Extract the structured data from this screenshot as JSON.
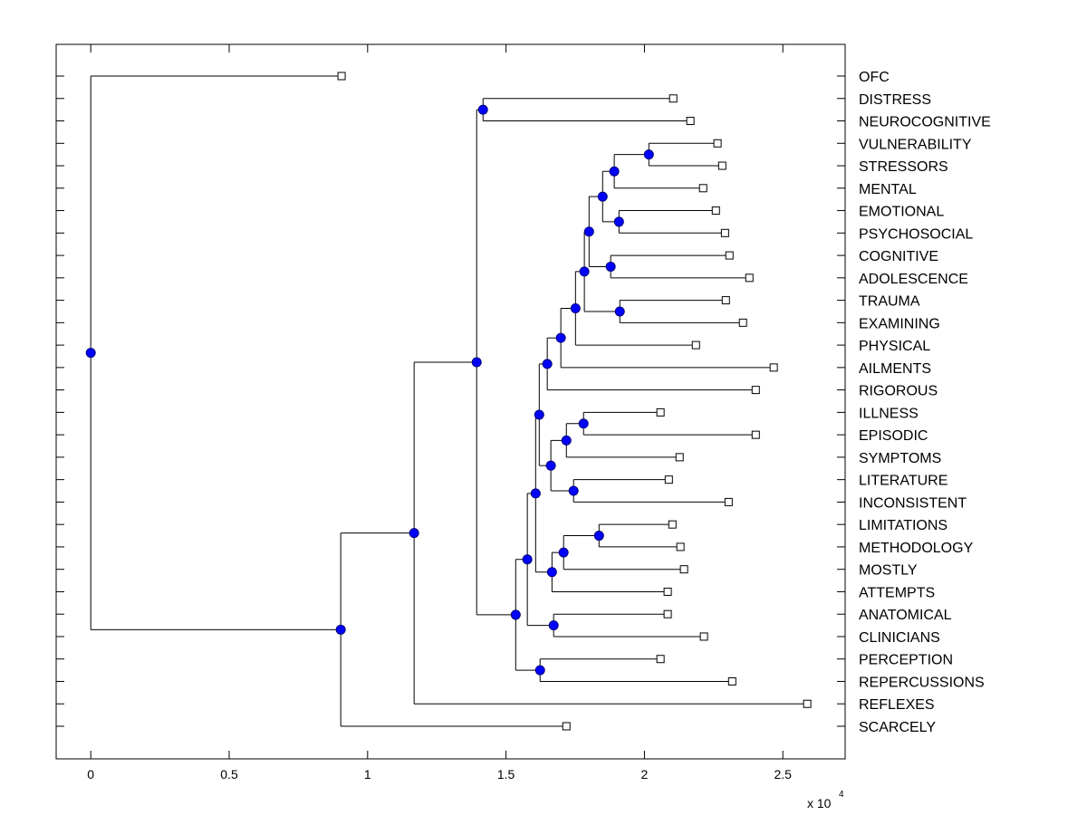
{
  "chart_data": {
    "type": "dendrogram",
    "title": "",
    "xlabel": "",
    "ylabel": "",
    "x_scale_label": "x 10",
    "x_scale_exponent": "4",
    "xlim": [
      -0.125,
      2.725
    ],
    "x_ticks": [
      0,
      0.5,
      1,
      1.5,
      2,
      2.5
    ],
    "x_tick_labels": [
      "0",
      "0.5",
      "1",
      "1.5",
      "2",
      "2.5"
    ],
    "grid": false,
    "node_color": "#0000ff",
    "leaf_marker": "open-square",
    "leaves": [
      {
        "label": "OFC",
        "x": 0.906
      },
      {
        "label": "DISTRESS",
        "x": 2.104
      },
      {
        "label": "NEUROCOGNITIVE",
        "x": 2.166
      },
      {
        "label": "VULNERABILITY",
        "x": 2.264
      },
      {
        "label": "STRESSORS",
        "x": 2.281
      },
      {
        "label": "MENTAL",
        "x": 2.212
      },
      {
        "label": "EMOTIONAL",
        "x": 2.258
      },
      {
        "label": "PSYCHOSOCIAL",
        "x": 2.291
      },
      {
        "label": "COGNITIVE",
        "x": 2.307
      },
      {
        "label": "ADOLESCENCE",
        "x": 2.379
      },
      {
        "label": "TRAUMA",
        "x": 2.294
      },
      {
        "label": "EXAMINING",
        "x": 2.356
      },
      {
        "label": "PHYSICAL",
        "x": 2.186
      },
      {
        "label": "AILMENTS",
        "x": 2.467
      },
      {
        "label": "RIGOROUS",
        "x": 2.402
      },
      {
        "label": "ILLNESS",
        "x": 2.058
      },
      {
        "label": "EPISODIC",
        "x": 2.402
      },
      {
        "label": "SYMPTOMS",
        "x": 2.127
      },
      {
        "label": "LITERATURE",
        "x": 2.088
      },
      {
        "label": "INCONSISTENT",
        "x": 2.304
      },
      {
        "label": "LIMITATIONS",
        "x": 2.101
      },
      {
        "label": "METHODOLOGY",
        "x": 2.13
      },
      {
        "label": "MOSTLY",
        "x": 2.143
      },
      {
        "label": "ATTEMPTS",
        "x": 2.084
      },
      {
        "label": "ANATOMICAL",
        "x": 2.084
      },
      {
        "label": "CLINICIANS",
        "x": 2.215
      },
      {
        "label": "PERCEPTION",
        "x": 2.058
      },
      {
        "label": "REPERCUSSIONS",
        "x": 2.317
      },
      {
        "label": "REFLEXES",
        "x": 2.588
      },
      {
        "label": "SCARCELY",
        "x": 1.718
      }
    ],
    "nodes": [
      {
        "id": "n0",
        "x": 0.0,
        "children": [
          "L0",
          "n1"
        ]
      },
      {
        "id": "n1",
        "x": 0.903,
        "children": [
          "n2",
          "L29"
        ]
      },
      {
        "id": "n2",
        "x": 1.168,
        "children": [
          "n3",
          "L28"
        ]
      },
      {
        "id": "n3",
        "x": 1.394,
        "children": [
          "n4",
          "n5"
        ]
      },
      {
        "id": "n4",
        "x": 1.417,
        "children": [
          "L1",
          "L2"
        ]
      },
      {
        "id": "n5",
        "x": 1.535,
        "children": [
          "n6",
          "n7"
        ]
      },
      {
        "id": "n7",
        "x": 1.623,
        "children": [
          "L26",
          "L27"
        ]
      },
      {
        "id": "n6",
        "x": 1.577,
        "children": [
          "n8",
          "n9"
        ]
      },
      {
        "id": "n9",
        "x": 1.672,
        "children": [
          "L24",
          "L25"
        ]
      },
      {
        "id": "n8",
        "x": 1.607,
        "children": [
          "n10",
          "n11"
        ]
      },
      {
        "id": "n11",
        "x": 1.666,
        "children": [
          "n12",
          "L23"
        ]
      },
      {
        "id": "n12",
        "x": 1.708,
        "children": [
          "n13",
          "L22"
        ]
      },
      {
        "id": "n13",
        "x": 1.836,
        "children": [
          "L20",
          "L21"
        ]
      },
      {
        "id": "n10",
        "x": 1.62,
        "children": [
          "n14",
          "n15"
        ]
      },
      {
        "id": "n15",
        "x": 1.662,
        "children": [
          "n16",
          "n17"
        ]
      },
      {
        "id": "n16",
        "x": 1.718,
        "children": [
          "n18",
          "L17"
        ]
      },
      {
        "id": "n18",
        "x": 1.78,
        "children": [
          "L15",
          "L16"
        ]
      },
      {
        "id": "n17",
        "x": 1.744,
        "children": [
          "L18",
          "L19"
        ]
      },
      {
        "id": "n14",
        "x": 1.649,
        "children": [
          "n19",
          "L14"
        ]
      },
      {
        "id": "n19",
        "x": 1.698,
        "children": [
          "n20",
          "L13"
        ]
      },
      {
        "id": "n20",
        "x": 1.751,
        "children": [
          "n21",
          "L12"
        ]
      },
      {
        "id": "n21",
        "x": 1.783,
        "children": [
          "n22",
          "n23"
        ]
      },
      {
        "id": "n23",
        "x": 1.911,
        "children": [
          "L10",
          "L11"
        ]
      },
      {
        "id": "n22",
        "x": 1.8,
        "children": [
          "n24",
          "n25"
        ]
      },
      {
        "id": "n25",
        "x": 1.878,
        "children": [
          "L8",
          "L9"
        ]
      },
      {
        "id": "n24",
        "x": 1.849,
        "children": [
          "n26",
          "n27"
        ]
      },
      {
        "id": "n27",
        "x": 1.908,
        "children": [
          "L6",
          "L7"
        ]
      },
      {
        "id": "n26",
        "x": 1.891,
        "children": [
          "n28",
          "L5"
        ]
      },
      {
        "id": "n28",
        "x": 2.016,
        "children": [
          "L3",
          "L4"
        ]
      }
    ]
  }
}
